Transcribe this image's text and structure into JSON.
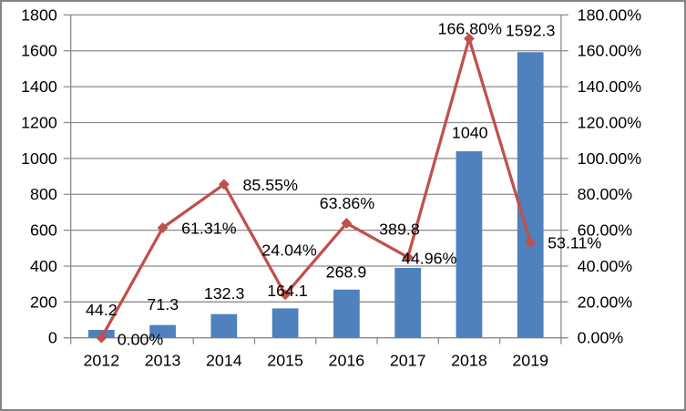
{
  "chart_data": {
    "type": "combo",
    "title": "",
    "legend": "none",
    "grid": true,
    "categories": [
      "2012",
      "2013",
      "2014",
      "2015",
      "2016",
      "2017",
      "2018",
      "2019"
    ],
    "series": [
      {
        "name": "value-bars",
        "type": "bar",
        "axis": "left",
        "color": "#4E81BD",
        "values": [
          44.2,
          71.3,
          132.3,
          164.1,
          268.9,
          389.8,
          1040,
          1592.3
        ],
        "labels": [
          "44.2",
          "71.3",
          "132.3",
          "164.1",
          "268.9",
          "389.8",
          "1040",
          "1592.3"
        ]
      },
      {
        "name": "growth-rate-line",
        "type": "line",
        "axis": "right",
        "color": "#C0504D",
        "marker": "diamond",
        "values": [
          0.0,
          61.31,
          85.55,
          24.04,
          63.86,
          44.96,
          166.8,
          53.11
        ],
        "labels": [
          "0.00%",
          "61.31%",
          "85.55%",
          "24.04%",
          "63.86%",
          "44.96%",
          "166.80%",
          "53.11%"
        ]
      }
    ],
    "left_axis": {
      "min": 0,
      "max": 1800,
      "step": 200,
      "ticks": [
        "1800",
        "1600",
        "1400",
        "1200",
        "1000",
        "800",
        "600",
        "400",
        "200",
        "0"
      ]
    },
    "right_axis": {
      "min": 0,
      "max": 180,
      "step": 20,
      "ticks": [
        "180.00%",
        "160.00%",
        "140.00%",
        "120.00%",
        "100.00%",
        "80.00%",
        "60.00%",
        "40.00%",
        "20.00%",
        "0.00%"
      ]
    },
    "colors": {
      "bar": "#4E81BD",
      "line": "#C0504D",
      "grid": "#8C8C8C",
      "axis": "#8C8C8C",
      "text": "#000000",
      "frame": "#848484"
    }
  }
}
